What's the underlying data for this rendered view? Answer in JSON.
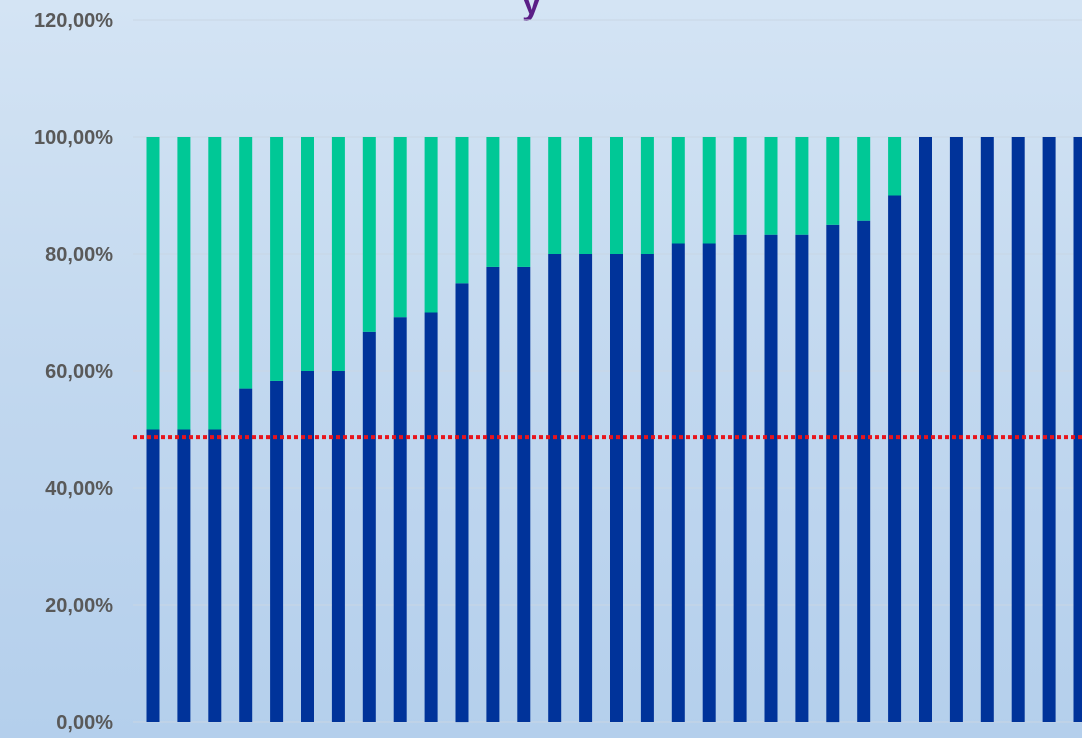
{
  "chart_data": {
    "type": "bar",
    "stacked": true,
    "title_fragment": "y",
    "ylim": [
      0,
      120
    ],
    "y_ticks": [
      "0,00%",
      "20,00%",
      "40,00%",
      "60,00%",
      "80,00%",
      "100,00%",
      "120,00%"
    ],
    "y_tick_values": [
      0,
      20,
      40,
      60,
      80,
      100,
      120
    ],
    "grid": true,
    "legend": "none",
    "reference_line": {
      "value": 48.7,
      "style": "dotted",
      "color": "#e8141c"
    },
    "series": [
      {
        "color": "#00339a",
        "values": [
          50,
          50,
          50,
          57,
          58.3,
          60,
          60,
          66.7,
          69.2,
          70,
          75,
          77.8,
          77.8,
          80,
          80,
          80,
          80,
          81.8,
          81.8,
          83.3,
          83.3,
          83.3,
          85,
          85.7,
          90,
          100,
          100,
          100,
          100,
          100,
          100
        ]
      },
      {
        "color": "#00c896",
        "values": [
          50,
          50,
          50,
          43,
          41.7,
          40,
          40,
          33.3,
          30.8,
          30,
          25,
          22.2,
          22.2,
          20,
          20,
          20,
          20,
          18.2,
          18.2,
          16.7,
          16.7,
          16.7,
          15,
          14.3,
          10,
          0,
          0,
          0,
          0,
          0,
          0
        ]
      }
    ],
    "colors": {
      "title": "#5a1e86",
      "tick_text": "#595959",
      "grid": "#c9d6e4"
    }
  }
}
